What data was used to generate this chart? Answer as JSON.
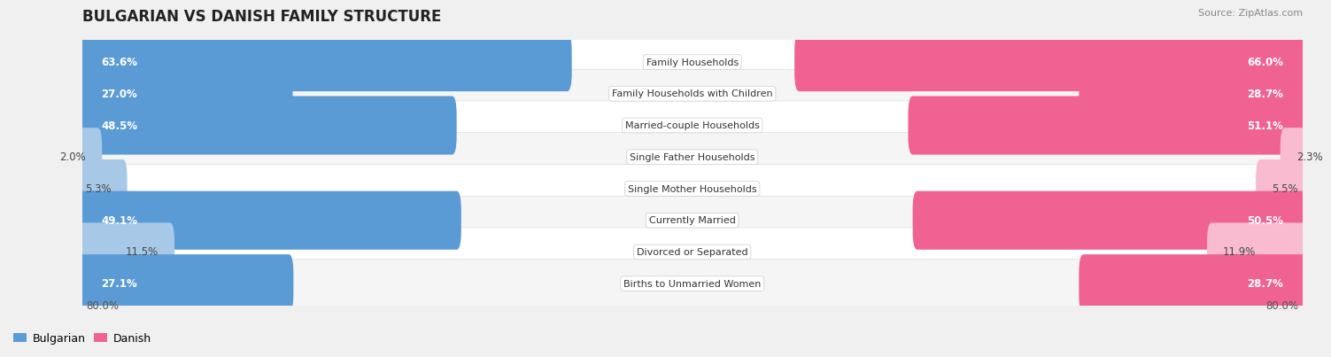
{
  "title": "BULGARIAN VS DANISH FAMILY STRUCTURE",
  "source": "Source: ZipAtlas.com",
  "categories": [
    "Family Households",
    "Family Households with Children",
    "Married-couple Households",
    "Single Father Households",
    "Single Mother Households",
    "Currently Married",
    "Divorced or Separated",
    "Births to Unmarried Women"
  ],
  "bulgarian": [
    63.6,
    27.0,
    48.5,
    2.0,
    5.3,
    49.1,
    11.5,
    27.1
  ],
  "danish": [
    66.0,
    28.7,
    51.1,
    2.3,
    5.5,
    50.5,
    11.9,
    28.7
  ],
  "bulgarian_labels": [
    "63.6%",
    "27.0%",
    "48.5%",
    "2.0%",
    "5.3%",
    "49.1%",
    "11.5%",
    "27.1%"
  ],
  "danish_labels": [
    "66.0%",
    "28.7%",
    "51.1%",
    "2.3%",
    "5.5%",
    "50.5%",
    "11.9%",
    "28.7%"
  ],
  "x_max": 80.0,
  "x_min_label": "80.0%",
  "x_max_label": "80.0%",
  "bulgarian_color_strong": "#5B9BD5",
  "bulgarian_color_light": "#A8C8E8",
  "danish_color_strong": "#F06292",
  "danish_color_light": "#F8BBD0",
  "bg_color": "#F0F0F0",
  "row_bg_color": "#FAFAFA",
  "row_alt_bg": "#EFEFEF",
  "title_fontsize": 12,
  "source_fontsize": 8,
  "label_fontsize": 8.5,
  "category_fontsize": 8,
  "legend_fontsize": 9,
  "threshold_strong": 20
}
